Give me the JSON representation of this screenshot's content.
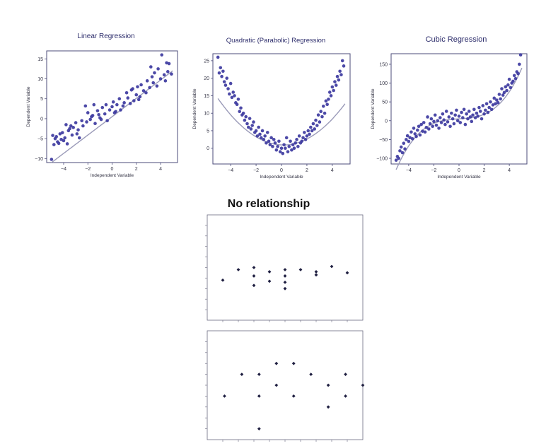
{
  "colors": {
    "point": "#3d3aa0",
    "fit_line": "#9a9ab8",
    "frame": "#4b4b7a",
    "plain_point": "#1e1e40",
    "plain_frame": "#6a6a80"
  },
  "heading": "No relationship",
  "chart_data": [
    {
      "id": "linear",
      "type": "scatter",
      "title": "Linear Regression",
      "xlabel": "Independent Variable",
      "ylabel": "Dependent Variable",
      "xlim": [
        -5.4,
        5.4
      ],
      "ylim": [
        -11,
        17
      ],
      "xticks": [
        -4,
        -2,
        0,
        2,
        4
      ],
      "yticks": [
        -10,
        -5,
        0,
        5,
        10,
        15
      ],
      "fit": {
        "kind": "linear",
        "coeffs": [
          2.3,
          0.5
        ]
      },
      "x": [
        -5.0,
        -4.9,
        -4.8,
        -4.7,
        -4.6,
        -4.5,
        -4.4,
        -4.3,
        -4.2,
        -4.0,
        -3.9,
        -3.8,
        -3.7,
        -3.6,
        -3.5,
        -3.3,
        -3.2,
        -3.0,
        -2.8,
        -2.7,
        -2.5,
        -2.4,
        -2.2,
        -2.1,
        -2.0,
        -1.8,
        -1.7,
        -1.5,
        -1.4,
        -1.2,
        -1.1,
        -1.0,
        -0.8,
        -0.6,
        -0.5,
        -0.4,
        -0.2,
        0.0,
        0.1,
        0.3,
        0.4,
        0.6,
        0.7,
        0.9,
        1.0,
        1.2,
        1.3,
        1.5,
        1.7,
        1.8,
        2.0,
        2.1,
        2.3,
        2.4,
        2.6,
        2.8,
        2.9,
        3.1,
        3.2,
        3.4,
        3.5,
        3.7,
        3.8,
        4.0,
        4.1,
        4.3,
        4.4,
        4.6,
        4.7,
        4.9,
        -4.1,
        -2.9,
        -1.6,
        0.2,
        1.6,
        3.3,
        4.5,
        -3.4,
        -0.9,
        2.2
      ],
      "y": [
        -10.2,
        -4.2,
        -6.5,
        -5.0,
        -4.5,
        -5.8,
        -6.2,
        -3.8,
        -5.2,
        -5.5,
        -4.8,
        -1.5,
        -6.3,
        -3.0,
        -2.5,
        -4.1,
        -2.2,
        -1.0,
        -2.8,
        -4.8,
        -0.5,
        -1.8,
        3.2,
        -0.8,
        1.5,
        -0.2,
        0.5,
        3.5,
        -1.2,
        2.0,
        1.0,
        0.2,
        2.8,
        1.2,
        3.5,
        -0.5,
        2.2,
        3.0,
        4.2,
        1.8,
        3.5,
        5.0,
        2.2,
        3.2,
        4.0,
        6.5,
        5.2,
        3.8,
        7.5,
        4.5,
        6.0,
        8.0,
        5.5,
        8.5,
        7.0,
        6.5,
        9.5,
        7.8,
        13.0,
        9.0,
        11.5,
        8.2,
        12.5,
        10.0,
        16.0,
        11.0,
        9.5,
        11.8,
        13.8,
        11.2,
        -3.5,
        -3.8,
        0.8,
        1.5,
        7.2,
        10.5,
        14.0,
        -1.8,
        -0.2,
        4.8
      ]
    },
    {
      "id": "quadratic",
      "type": "scatter",
      "title": "Quadratic (Parabolic) Regression",
      "xlabel": "Independent Variable",
      "ylabel": "Dependent Variable",
      "xlim": [
        -5.4,
        5.4
      ],
      "ylim": [
        -4.5,
        27
      ],
      "xticks": [
        -4,
        -2,
        0,
        2,
        4
      ],
      "yticks": [
        0,
        5,
        10,
        15,
        20,
        25
      ],
      "fit": {
        "kind": "poly",
        "coeffs": [
          0.5,
          -0.15,
          0.95
        ]
      },
      "x": [
        -5.0,
        -4.9,
        -4.8,
        -4.7,
        -4.6,
        -4.5,
        -4.4,
        -4.3,
        -4.2,
        -4.1,
        -4.0,
        -3.9,
        -3.8,
        -3.7,
        -3.6,
        -3.5,
        -3.4,
        -3.3,
        -3.2,
        -3.1,
        -3.0,
        -2.9,
        -2.8,
        -2.7,
        -2.6,
        -2.5,
        -2.4,
        -2.3,
        -2.2,
        -2.1,
        -2.0,
        -1.9,
        -1.8,
        -1.7,
        -1.6,
        -1.5,
        -1.4,
        -1.3,
        -1.2,
        -1.1,
        -1.0,
        -0.9,
        -0.8,
        -0.7,
        -0.6,
        -0.5,
        -0.4,
        -0.3,
        -0.2,
        -0.1,
        0.0,
        0.1,
        0.2,
        0.3,
        0.4,
        0.5,
        0.6,
        0.7,
        0.8,
        0.9,
        1.0,
        1.1,
        1.2,
        1.3,
        1.4,
        1.5,
        1.6,
        1.7,
        1.8,
        1.9,
        2.0,
        2.1,
        2.2,
        2.3,
        2.4,
        2.5,
        2.6,
        2.7,
        2.8,
        2.9,
        3.0,
        3.1,
        3.2,
        3.3,
        3.4,
        3.5,
        3.6,
        3.7,
        3.8,
        3.9,
        4.0,
        4.1,
        4.2,
        4.3,
        4.4,
        4.5,
        4.6,
        4.7,
        4.8,
        4.9
      ],
      "y": [
        26.0,
        21.5,
        23.0,
        20.5,
        22.0,
        19.0,
        18.0,
        20.0,
        17.0,
        15.5,
        18.5,
        14.5,
        16.0,
        15.0,
        13.0,
        12.5,
        14.0,
        10.5,
        11.5,
        9.5,
        10.0,
        8.0,
        9.0,
        7.0,
        6.0,
        8.5,
        5.5,
        6.5,
        7.5,
        4.5,
        5.0,
        3.5,
        6.0,
        4.0,
        3.0,
        5.0,
        2.5,
        3.5,
        1.5,
        4.5,
        2.0,
        1.0,
        3.0,
        0.5,
        2.5,
        1.5,
        -0.5,
        0.5,
        2.0,
        -1.0,
        0.0,
        -1.5,
        1.0,
        0.0,
        3.0,
        -1.0,
        0.5,
        2.0,
        -0.5,
        1.0,
        0.0,
        1.5,
        2.5,
        0.5,
        3.5,
        1.5,
        2.0,
        3.0,
        4.5,
        2.5,
        3.5,
        5.0,
        4.0,
        6.0,
        5.0,
        7.0,
        5.5,
        8.0,
        6.5,
        9.5,
        7.5,
        10.5,
        9.0,
        12.0,
        10.0,
        13.5,
        12.5,
        14.0,
        16.0,
        15.0,
        17.5,
        16.5,
        19.0,
        18.0,
        20.5,
        19.5,
        22.0,
        21.0,
        25.0,
        23.5
      ]
    },
    {
      "id": "cubic",
      "type": "scatter",
      "title": "Cubic Regression",
      "xlabel": "Independent Variable",
      "ylabel": "Dependent Variable",
      "xlim": [
        -5.4,
        5.4
      ],
      "ylim": [
        -115,
        178
      ],
      "xticks": [
        -4,
        -2,
        0,
        2,
        4
      ],
      "yticks": [
        -100,
        -50,
        0,
        50,
        100,
        150
      ],
      "fit": {
        "kind": "poly",
        "coeffs": [
          1.0,
          0.0,
          2.0,
          5.0
        ]
      },
      "x": [
        -5.0,
        -4.9,
        -4.8,
        -4.7,
        -4.6,
        -4.5,
        -4.4,
        -4.3,
        -4.2,
        -4.1,
        -4.0,
        -3.9,
        -3.8,
        -3.7,
        -3.6,
        -3.5,
        -3.4,
        -3.3,
        -3.2,
        -3.1,
        -3.0,
        -2.9,
        -2.8,
        -2.7,
        -2.6,
        -2.5,
        -2.4,
        -2.3,
        -2.2,
        -2.1,
        -2.0,
        -1.9,
        -1.8,
        -1.7,
        -1.6,
        -1.5,
        -1.4,
        -1.3,
        -1.2,
        -1.1,
        -1.0,
        -0.9,
        -0.8,
        -0.7,
        -0.6,
        -0.5,
        -0.4,
        -0.3,
        -0.2,
        -0.1,
        0.0,
        0.1,
        0.2,
        0.3,
        0.4,
        0.5,
        0.6,
        0.7,
        0.8,
        0.9,
        1.0,
        1.1,
        1.2,
        1.3,
        1.4,
        1.5,
        1.6,
        1.7,
        1.8,
        1.9,
        2.0,
        2.1,
        2.2,
        2.3,
        2.4,
        2.5,
        2.6,
        2.7,
        2.8,
        2.9,
        3.0,
        3.1,
        3.2,
        3.3,
        3.4,
        3.5,
        3.6,
        3.7,
        3.8,
        3.9,
        4.0,
        4.1,
        4.2,
        4.3,
        4.4,
        4.5,
        4.6,
        4.7,
        4.8,
        4.9
      ],
      "y": [
        -105,
        -95,
        -100,
        -80,
        -70,
        -85,
        -60,
        -75,
        -50,
        -40,
        -55,
        -45,
        -30,
        -48,
        -20,
        -35,
        -42,
        -25,
        -15,
        -38,
        -10,
        -28,
        -5,
        -30,
        -18,
        10,
        -22,
        -8,
        5,
        -15,
        -2,
        15,
        -12,
        0,
        -20,
        8,
        -5,
        18,
        2,
        -10,
        25,
        -3,
        10,
        -15,
        20,
        5,
        -8,
        15,
        28,
        0,
        12,
        -5,
        22,
        8,
        30,
        -10,
        18,
        5,
        25,
        10,
        -2,
        15,
        30,
        8,
        20,
        12,
        35,
        25,
        5,
        40,
        18,
        28,
        45,
        22,
        35,
        50,
        30,
        42,
        60,
        45,
        55,
        48,
        70,
        58,
        85,
        68,
        75,
        90,
        80,
        95,
        110,
        88,
        100,
        105,
        120,
        112,
        130,
        125,
        150,
        175
      ]
    },
    {
      "id": "none_top",
      "type": "scatter",
      "title": "",
      "xlabel": "",
      "ylabel": "",
      "xlim": [
        0,
        10
      ],
      "ylim": [
        0,
        10
      ],
      "x": [
        1,
        2,
        3,
        3,
        3,
        4,
        4,
        5,
        5,
        5,
        5,
        6,
        7,
        7,
        8,
        9
      ],
      "y": [
        3.8,
        4.8,
        5.0,
        4.2,
        3.3,
        4.6,
        3.7,
        4.8,
        4.2,
        3.6,
        3.0,
        4.8,
        4.6,
        4.3,
        5.1,
        4.5
      ]
    },
    {
      "id": "none_bottom",
      "type": "scatter",
      "title": "",
      "xlabel": "",
      "ylabel": "",
      "xlim": [
        0,
        9
      ],
      "ylim": [
        0,
        10
      ],
      "x": [
        1,
        2,
        3,
        3,
        3,
        4,
        4,
        5,
        5,
        6,
        7,
        7,
        8,
        8,
        9
      ],
      "y": [
        4,
        6,
        6,
        4,
        1,
        5,
        7,
        7,
        4,
        6,
        5,
        3,
        6,
        4,
        5
      ]
    }
  ]
}
